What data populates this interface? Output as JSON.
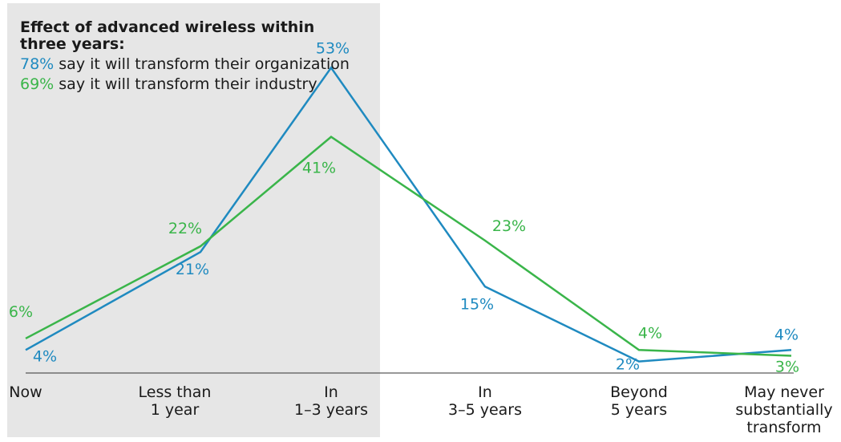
{
  "annotation": {
    "title": "Effect of advanced wireless within three years:",
    "org_pct": "78%",
    "org_text": " say it will transform their organization",
    "ind_pct": "69%",
    "ind_text": " say it will transform their industry"
  },
  "colors": {
    "organization": "#1f8ac0",
    "industry": "#3ab54a",
    "highlight": "#e6e6e6",
    "axis": "#333333"
  },
  "chart_data": {
    "type": "line",
    "categories": [
      "Now",
      "Less than\n1 year",
      "In\n1–3 years",
      "In\n3–5 years",
      "Beyond\n5 years",
      "May never\nsubstantially\ntransform"
    ],
    "series": [
      {
        "key": "organization",
        "values": [
          4,
          21,
          53,
          15,
          2,
          4
        ],
        "labels": [
          "4%",
          "21%",
          "53%",
          "15%",
          "2%",
          "4%"
        ]
      },
      {
        "key": "industry",
        "values": [
          6,
          22,
          41,
          23,
          4,
          3
        ],
        "labels": [
          "6%",
          "22%",
          "41%",
          "23%",
          "4%",
          "3%"
        ]
      }
    ],
    "highlight_categories": [
      0,
      1,
      2
    ],
    "ylim": [
      0,
      60
    ]
  }
}
